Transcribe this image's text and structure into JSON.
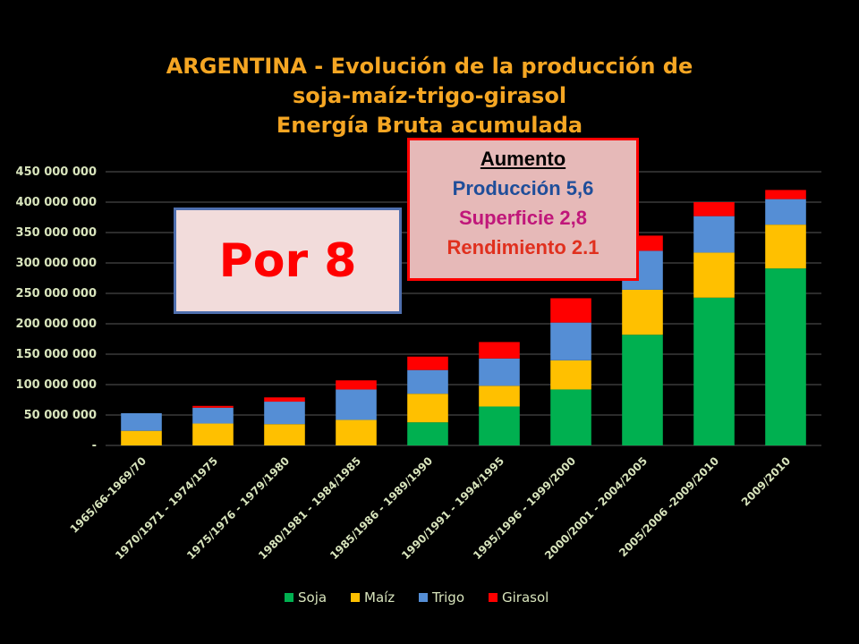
{
  "title": {
    "line1": "ARGENTINA - Evolución de la producción de",
    "line2": "soja-maíz-trigo-girasol",
    "line3": "Energía Bruta acumulada"
  },
  "callout_por8": "Por 8",
  "callout_aumento": {
    "heading": "Aumento",
    "produccion": "Producción 5,6",
    "superficie": "Superficie 2,8",
    "rendimiento": "Rendimiento 2.1"
  },
  "chart_data": {
    "type": "bar",
    "stacked": true,
    "categories": [
      "1965/66-1969/70",
      "1970/1971 - 1974/1975",
      "1975/1976 - 1979/1980",
      "1980/1981 - 1984/1985",
      "1985/1986 - 1989/1990",
      "1990/1991 - 1994/1995",
      "1995/1996 - 1999/2000",
      "2000/2001 - 2004/2005",
      "2005/2006 -2009/2010",
      "2009/2010"
    ],
    "series": [
      {
        "name": "Soja",
        "color": "#00b050",
        "values": [
          0,
          0,
          0,
          0,
          38000000,
          64000000,
          92000000,
          182000000,
          243000000,
          291000000
        ]
      },
      {
        "name": "Maíz",
        "color": "#ffc000",
        "values": [
          24000000,
          36000000,
          35000000,
          42000000,
          47000000,
          34000000,
          48000000,
          74000000,
          74000000,
          72000000
        ]
      },
      {
        "name": "Trigo",
        "color": "#558ed5",
        "values": [
          29000000,
          26000000,
          37000000,
          50000000,
          39000000,
          45000000,
          62000000,
          64000000,
          60000000,
          42000000
        ]
      },
      {
        "name": "Girasol",
        "color": "#ff0000",
        "values": [
          0,
          3000000,
          7000000,
          15000000,
          22000000,
          27000000,
          40000000,
          25000000,
          23000000,
          15000000
        ]
      }
    ],
    "ylim": [
      0,
      450000000
    ],
    "yticks": [
      "-",
      "50 000 000",
      "100 000 000",
      "150 000 000",
      "200 000 000",
      "250 000 000",
      "300 000 000",
      "350 000 000",
      "400 000 000",
      "450 000 000"
    ],
    "grid": true,
    "legend": "bottom"
  }
}
